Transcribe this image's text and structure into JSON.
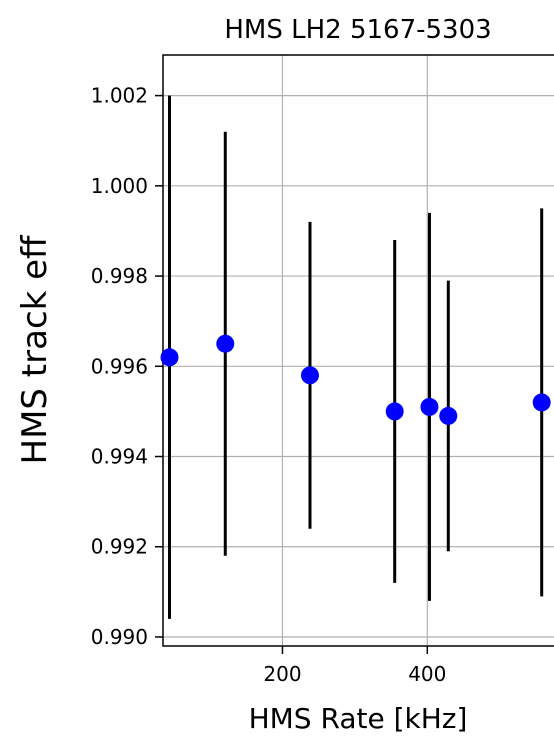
{
  "chart_data": {
    "type": "scatter",
    "title": "HMS LH2 5167-5303",
    "xlabel": "HMS Rate [kHz]",
    "ylabel": "HMS track eff",
    "xlim": [
      35,
      575
    ],
    "ylim": [
      0.9898,
      1.0029
    ],
    "xticks": [
      200,
      400
    ],
    "xtick_labels": [
      "200",
      "400"
    ],
    "yticks": [
      0.99,
      0.992,
      0.994,
      0.996,
      0.998,
      1.0,
      1.002
    ],
    "ytick_labels": [
      "0.990",
      "0.992",
      "0.994",
      "0.996",
      "0.998",
      "1.000",
      "1.002"
    ],
    "grid": true,
    "marker_color": "#0000ff",
    "errorbar_color": "#000000",
    "series": [
      {
        "points": [
          {
            "x": 44,
            "y": 0.9962,
            "yerr_low": 0.9904,
            "yerr_high": 1.002
          },
          {
            "x": 121,
            "y": 0.9965,
            "yerr_low": 0.9918,
            "yerr_high": 1.0012
          },
          {
            "x": 238,
            "y": 0.9958,
            "yerr_low": 0.9924,
            "yerr_high": 0.9992
          },
          {
            "x": 355,
            "y": 0.995,
            "yerr_low": 0.9912,
            "yerr_high": 0.9988
          },
          {
            "x": 403,
            "y": 0.9951,
            "yerr_low": 0.9908,
            "yerr_high": 0.9994
          },
          {
            "x": 429,
            "y": 0.9949,
            "yerr_low": 0.9919,
            "yerr_high": 0.9979
          },
          {
            "x": 558,
            "y": 0.9952,
            "yerr_low": 0.9909,
            "yerr_high": 0.9995
          }
        ]
      }
    ]
  }
}
